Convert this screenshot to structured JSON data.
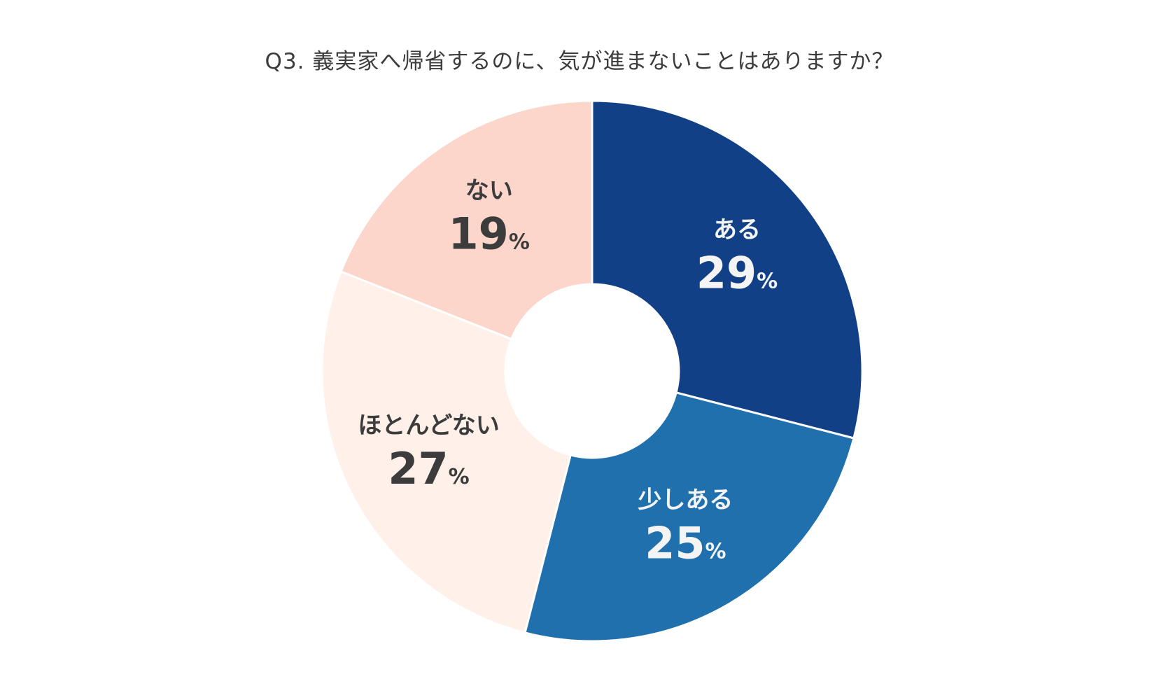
{
  "chart_data": {
    "type": "pie",
    "variant": "donut",
    "title": "Q3. 義実家へ帰省するのに、気が進まないことはありますか？",
    "unit": "%",
    "start": "top, clockwise",
    "slices": [
      {
        "label": "ある",
        "value": 29,
        "color": "#124086",
        "text_color": "#f4f4f4"
      },
      {
        "label": "少しある",
        "value": 25,
        "color": "#2070ae",
        "text_color": "#f4f4f4"
      },
      {
        "label": "ほとんどない",
        "value": 27,
        "color": "#fff1ea",
        "text_color": "#3c3c3c"
      },
      {
        "label": "ない",
        "value": 19,
        "color": "#fcd6ca",
        "text_color": "#3c3c3c"
      }
    ],
    "legend": "none"
  }
}
